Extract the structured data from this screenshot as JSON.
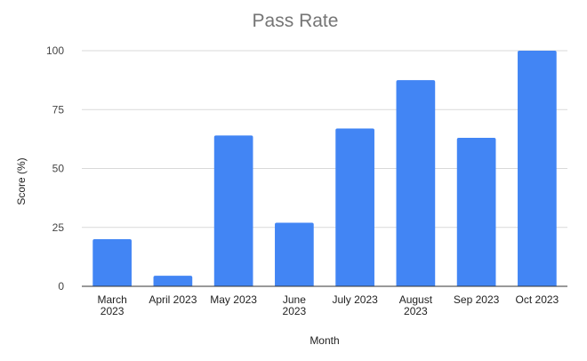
{
  "chart_data": {
    "type": "bar",
    "title": "Pass Rate",
    "xlabel": "Month",
    "ylabel": "Score (%)",
    "categories": [
      [
        "March",
        "2023"
      ],
      [
        "April 2023"
      ],
      [
        "May 2023"
      ],
      [
        "June",
        "2023"
      ],
      [
        "July 2023"
      ],
      [
        "August",
        "2023"
      ],
      [
        "Sep 2023"
      ],
      [
        "Oct 2023"
      ]
    ],
    "values": [
      20,
      4.5,
      64,
      27,
      67,
      87.5,
      63,
      100
    ],
    "ylim": [
      0,
      100
    ],
    "yticks": [
      0,
      25,
      50,
      75,
      100
    ],
    "grid": true,
    "legend": "none",
    "bar_color": "#4285f4"
  }
}
